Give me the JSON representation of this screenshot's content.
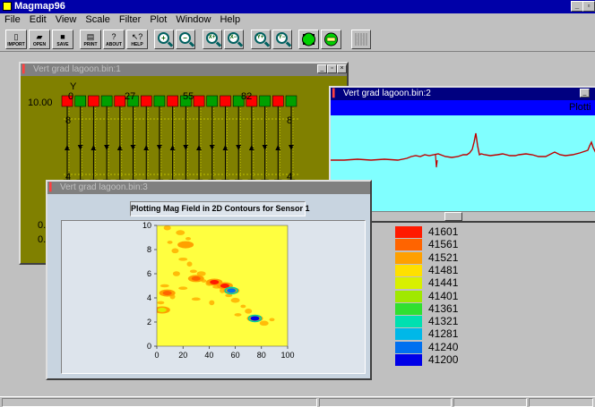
{
  "app": {
    "title": "Magmap96"
  },
  "menu": [
    "File",
    "Edit",
    "View",
    "Scale",
    "Filter",
    "Plot",
    "Window",
    "Help"
  ],
  "toolbar": {
    "file_buttons": [
      "IMPORT",
      "OPEN",
      "SAVE",
      "PRINT",
      "ABOUT",
      "HELP"
    ],
    "zoom_buttons": [
      "+",
      "−",
      "X+",
      "X−",
      "Y+",
      "Y−"
    ]
  },
  "window1": {
    "title": "Vert grad lagoon.bin:1",
    "y_axis_label": "Y",
    "tick_left_top": "10.00",
    "tick_left_mid": "8",
    "tick_left_bot": "4",
    "tick_left_low1": "0.",
    "tick_left_low2": "0.",
    "tick_right_mid": "8",
    "tick_right_bot": "4",
    "column_labels": [
      "0",
      "27",
      "55",
      "82"
    ]
  },
  "window2": {
    "title": "Vert grad lagoon.bin:2",
    "header_text": "Plotti"
  },
  "window3": {
    "title": "Vert grad lagoon.bin:3",
    "plot_title": "Plotting Mag Field in 2D Contours for Sensor 1"
  },
  "chart_data": {
    "type": "heatmap",
    "title": "Plotting Mag Field in 2D Contours for Sensor 1",
    "xlim": [
      0,
      100
    ],
    "ylim": [
      0,
      10
    ],
    "x_ticks": [
      "0",
      "20",
      "40",
      "60",
      "80",
      "100"
    ],
    "y_ticks": [
      "0",
      "2",
      "4",
      "6",
      "8",
      "10"
    ],
    "legend": {
      "values": [
        "41601",
        "41561",
        "41521",
        "41481",
        "41441",
        "41401",
        "41361",
        "41321",
        "41281",
        "41240",
        "41200"
      ],
      "colors": [
        "#ff1a00",
        "#ff6400",
        "#ffa000",
        "#ffe000",
        "#d8f000",
        "#a0e800",
        "#30e030",
        "#00e0b0",
        "#00b8e8",
        "#0070f0",
        "#0000e8"
      ]
    },
    "blobs": [
      {
        "x": 30,
        "y": 5.6,
        "value": 41561
      },
      {
        "x": 44,
        "y": 5.3,
        "value": 41601
      },
      {
        "x": 52,
        "y": 5.0,
        "value": 41601
      },
      {
        "x": 57,
        "y": 4.6,
        "value": 41240
      },
      {
        "x": 75,
        "y": 2.3,
        "value": 41200
      },
      {
        "x": 8,
        "y": 4.4,
        "value": 41561
      },
      {
        "x": 22,
        "y": 8.4,
        "value": 41521
      },
      {
        "x": 4,
        "y": 3.0,
        "value": 41441
      }
    ]
  },
  "colors": {
    "title_active": "#000080",
    "title_inactive": "#808080",
    "plot_olive": "#808000",
    "cyan_plot": "#80ffff",
    "trace_red": "#c00000",
    "heatmap_bg": "#ffff40"
  }
}
